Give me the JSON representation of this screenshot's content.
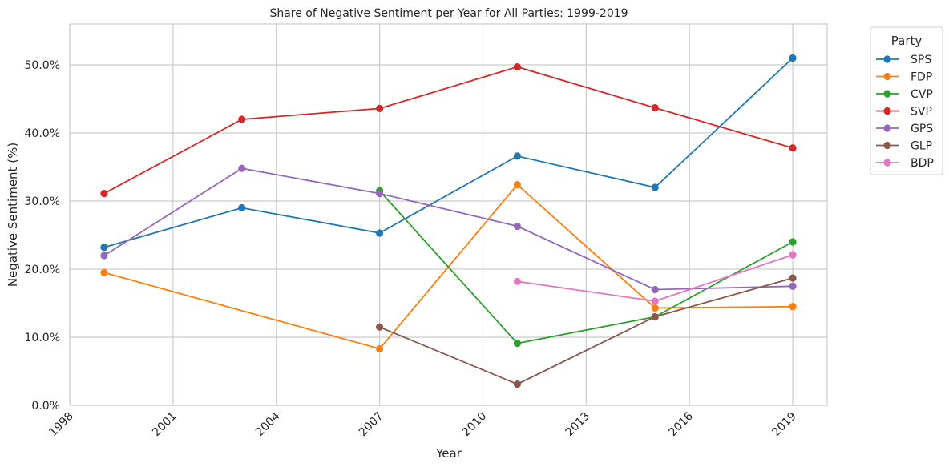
{
  "chart_data": {
    "type": "line",
    "title": "Share of Negative Sentiment per Year for All Parties: 1999-2019",
    "xlabel": "Year",
    "ylabel": "Negative Sentiment (%)",
    "xlim": [
      1998,
      2020
    ],
    "ylim": [
      0,
      56
    ],
    "x_ticks": [
      1998,
      2001,
      2004,
      2007,
      2010,
      2013,
      2016,
      2019
    ],
    "x_tick_labels": [
      "1998",
      "2001",
      "2004",
      "2007",
      "2010",
      "2013",
      "2016",
      "2019"
    ],
    "y_ticks": [
      0,
      10,
      20,
      30,
      40,
      50
    ],
    "y_tick_labels": [
      "0.0%",
      "10.0%",
      "20.0%",
      "30.0%",
      "40.0%",
      "50.0%"
    ],
    "grid": true,
    "legend": {
      "title": "Party",
      "placement": "outside top-right"
    },
    "series": [
      {
        "name": "SPS",
        "color": "#1f77b4",
        "points": [
          [
            1999,
            23.2
          ],
          [
            2003,
            29.0
          ],
          [
            2007,
            25.3
          ],
          [
            2011,
            36.6
          ],
          [
            2015,
            32.0
          ],
          [
            2019,
            51.0
          ]
        ]
      },
      {
        "name": "FDP",
        "color": "#ff7f0e",
        "points": [
          [
            1999,
            19.5
          ],
          [
            2007,
            8.3
          ],
          [
            2011,
            32.4
          ],
          [
            2015,
            14.3
          ],
          [
            2019,
            14.5
          ]
        ]
      },
      {
        "name": "CVP",
        "color": "#2ca02c",
        "points": [
          [
            2007,
            31.5
          ],
          [
            2011,
            9.1
          ],
          [
            2015,
            13.0
          ],
          [
            2019,
            24.0
          ]
        ]
      },
      {
        "name": "SVP",
        "color": "#d62728",
        "points": [
          [
            1999,
            31.1
          ],
          [
            2003,
            42.0
          ],
          [
            2007,
            43.6
          ],
          [
            2011,
            49.7
          ],
          [
            2015,
            43.7
          ],
          [
            2019,
            37.8
          ]
        ]
      },
      {
        "name": "GPS",
        "color": "#9467bd",
        "points": [
          [
            1999,
            22.0
          ],
          [
            2003,
            34.8
          ],
          [
            2007,
            31.1
          ],
          [
            2011,
            26.3
          ],
          [
            2015,
            17.0
          ],
          [
            2019,
            17.5
          ]
        ]
      },
      {
        "name": "GLP",
        "color": "#8c564b",
        "points": [
          [
            2007,
            11.5
          ],
          [
            2011,
            3.1
          ],
          [
            2015,
            13.0
          ],
          [
            2019,
            18.7
          ]
        ]
      },
      {
        "name": "BDP",
        "color": "#e377c2",
        "points": [
          [
            2011,
            18.2
          ],
          [
            2015,
            15.3
          ],
          [
            2019,
            22.1
          ]
        ]
      }
    ]
  }
}
